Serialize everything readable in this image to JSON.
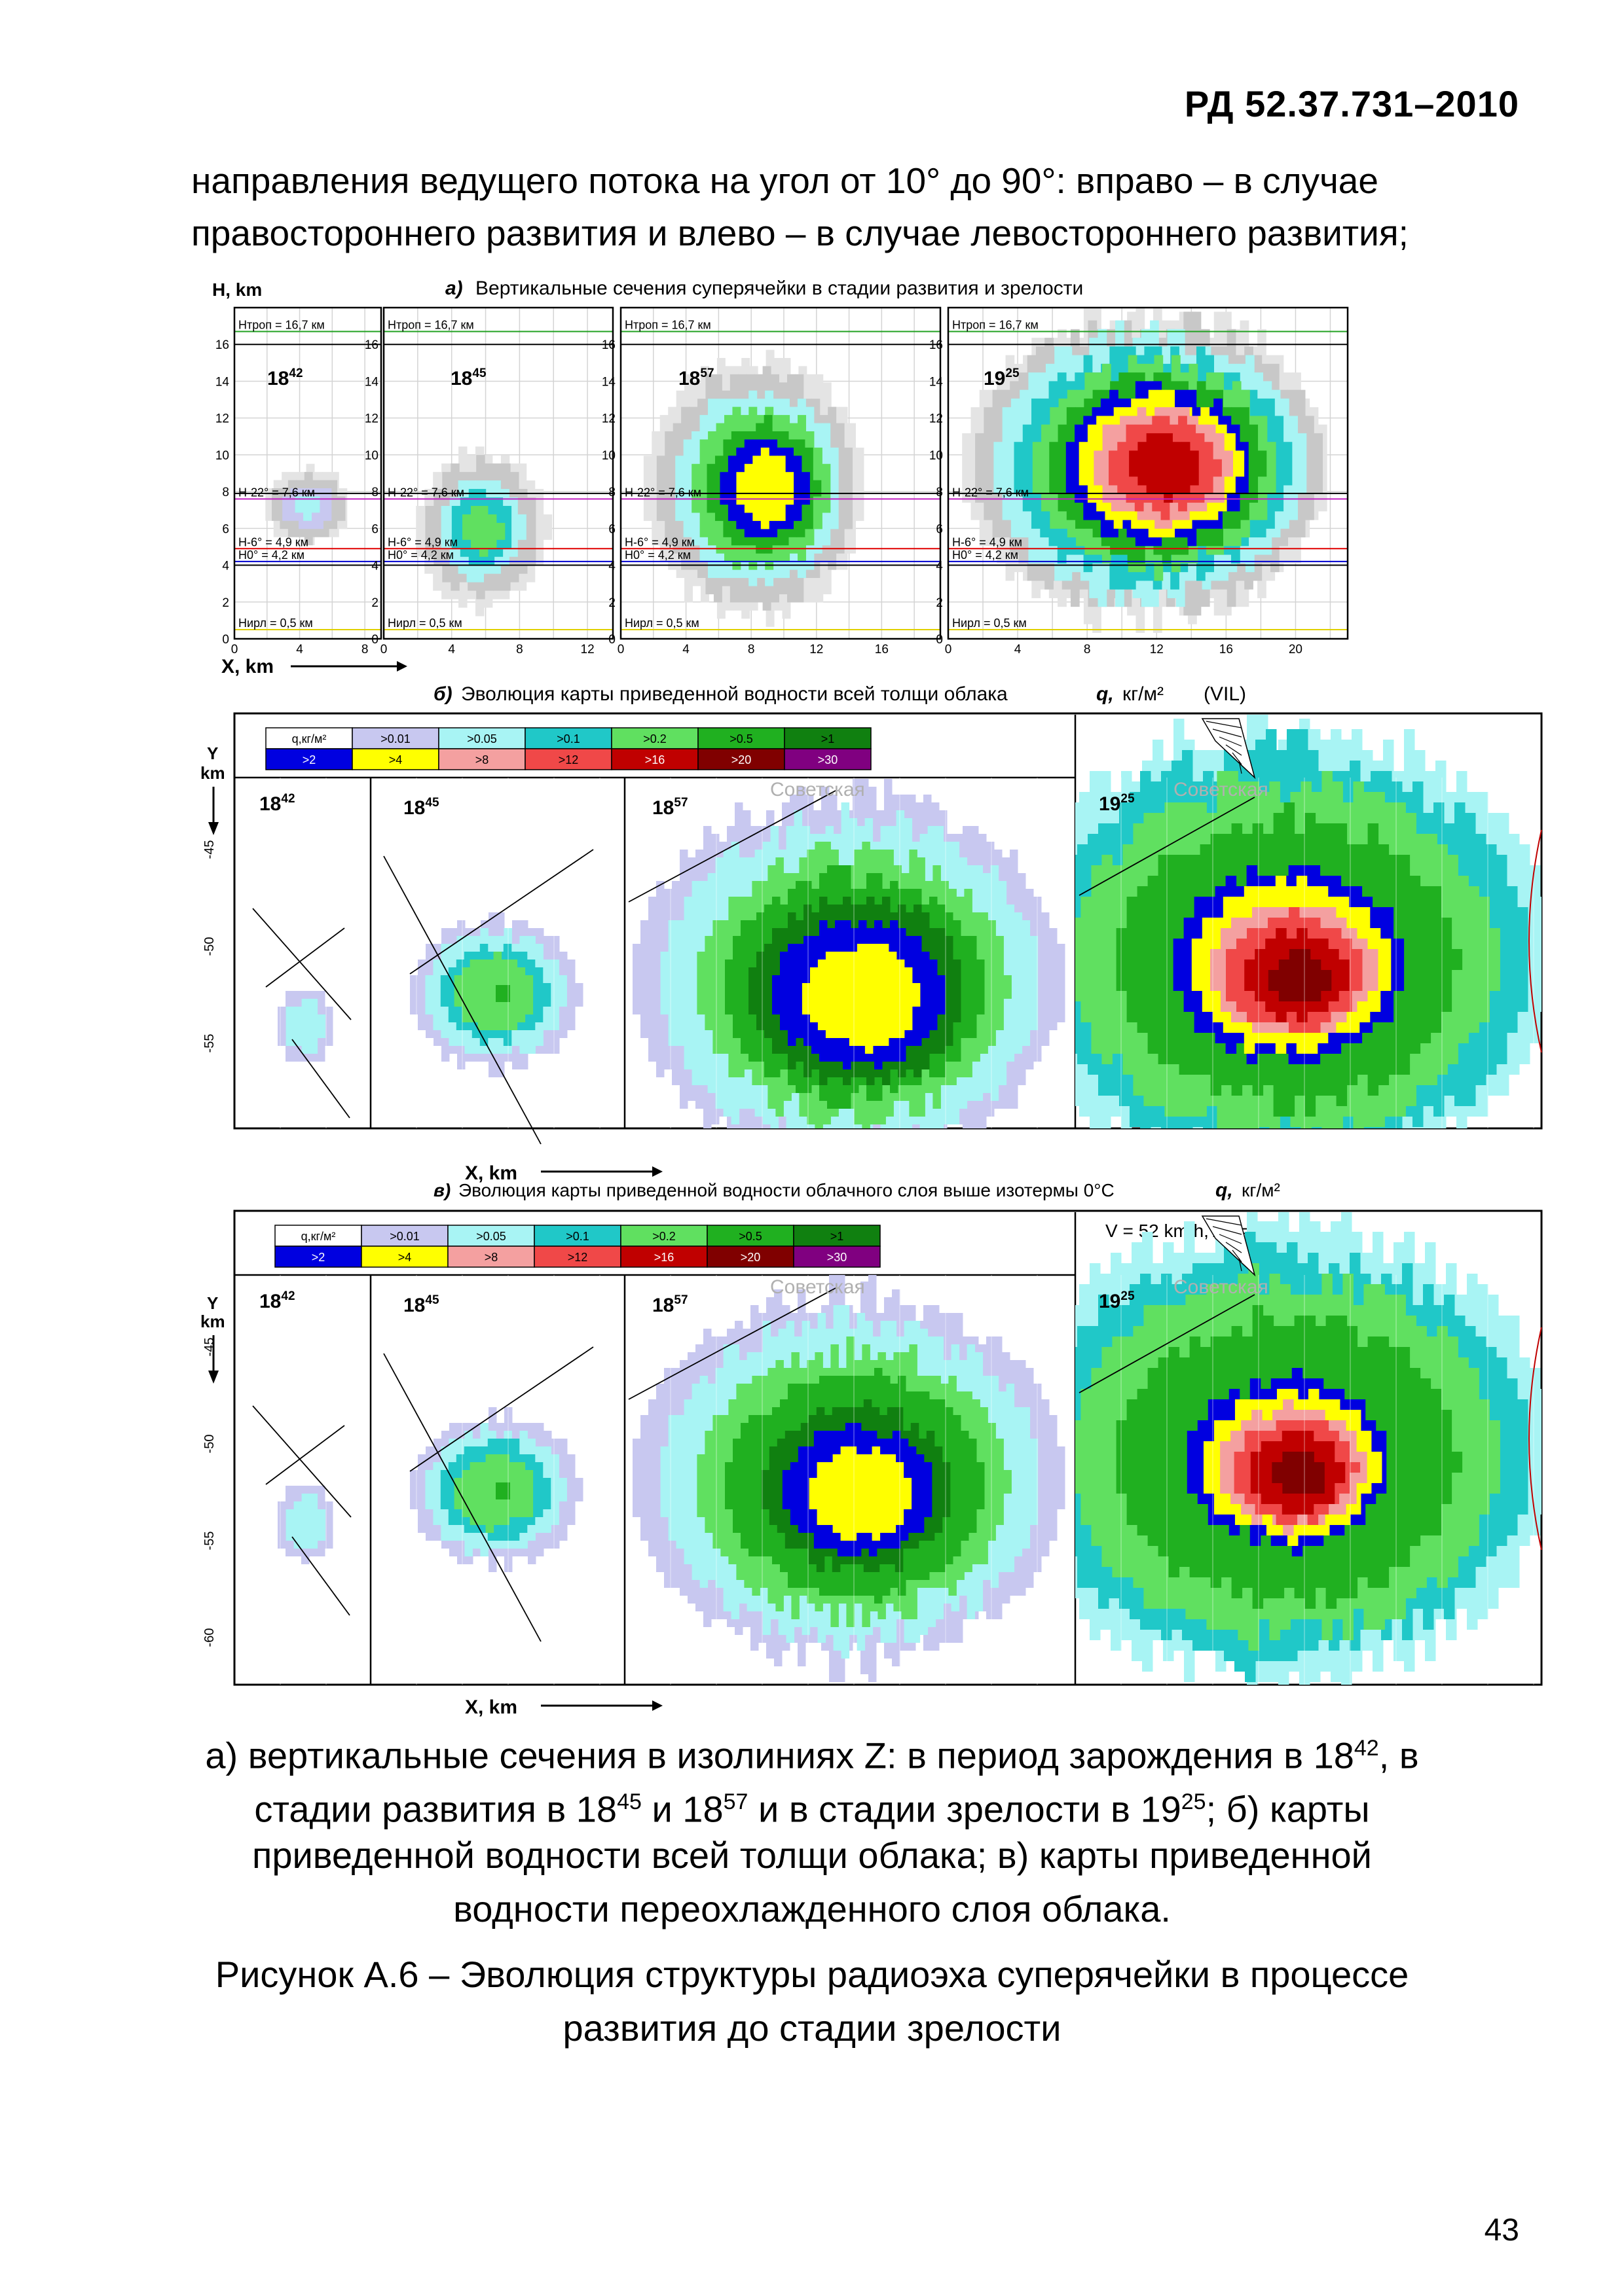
{
  "header": {
    "doc_code": "РД 52.37.731–2010"
  },
  "body": {
    "line1": "направления ведущего потока на угол от 10° до 90°: вправо – в случае",
    "line2": "правостороннего развития и влево – в случае левостороннего развития;"
  },
  "figure": {
    "panel_a": {
      "title_prefix": "а)",
      "title": "Вертикальные сечения суперячейки в стадии развития и зрелости",
      "y_axis_label": "H, km",
      "x_axis_label": "X, km",
      "levels": {
        "trop": "Нтроп = 16,7 км",
        "h22": "Н-22° = 7,6 км",
        "h6": "Н-6° = 4,9 км",
        "h0": "Н0° = 4,2 км",
        "hcond": "Нирл = 0,5 км"
      },
      "times": [
        "18",
        "18",
        "18",
        "19"
      ],
      "times_sup": [
        "42",
        "45",
        "57",
        "25"
      ],
      "y_ticks": [
        "0",
        "2",
        "4",
        "6",
        "8",
        "10",
        "12",
        "14",
        "16"
      ],
      "x_ticks_1": [
        "0",
        "4",
        "8"
      ],
      "x_ticks_2": [
        "0",
        "4",
        "8",
        "12"
      ],
      "x_ticks_3": [
        "0",
        "4",
        "8",
        "12",
        "16"
      ],
      "x_ticks_4": [
        "0",
        "4",
        "8",
        "12",
        "16",
        "20"
      ]
    },
    "panel_b": {
      "title_prefix": "б)",
      "title": "Эволюция карты приведенной водности всей толщи облака",
      "title_symbol": "q,",
      "title_unit": "кг/м²",
      "title_suffix": "(VIL)",
      "y_axis_label": "Y km",
      "x_axis_label": "X, km",
      "town": "Советская",
      "y_ticks": [
        "-45",
        "-50",
        "-55"
      ]
    },
    "panel_c": {
      "title_prefix": "в)",
      "title": "Эволюция карты приведенной водности облачного слоя выше изотермы 0°С",
      "title_symbol": "q,",
      "title_unit": "кг/м²",
      "y_axis_label": "Y km",
      "x_axis_label": "X, km",
      "town": "Советская",
      "velocity": "V = 52 km/h, Az = 63°",
      "y_ticks": [
        "-45",
        "-50",
        "-55",
        "-60"
      ]
    },
    "legend": {
      "row1": [
        {
          "label": "q,кг/м²",
          "color": "#ffffff"
        },
        {
          "label": ">0.01",
          "color": "#c8c8f0"
        },
        {
          "label": ">0.05",
          "color": "#a8f4f4"
        },
        {
          "label": ">0.1",
          "color": "#20c8c8"
        },
        {
          "label": ">0.2",
          "color": "#60e060"
        },
        {
          "label": ">0.5",
          "color": "#20b020"
        },
        {
          "label": ">1",
          "color": "#108010"
        }
      ],
      "row2": [
        {
          "label": ">2",
          "color": "#0000e0"
        },
        {
          "label": ">4",
          "color": "#ffff00"
        },
        {
          "label": ">8",
          "color": "#f4a0a0"
        },
        {
          "label": ">12",
          "color": "#f04848"
        },
        {
          "label": ">16",
          "color": "#c00000"
        },
        {
          "label": ">20",
          "color": "#800000"
        },
        {
          "label": ">30",
          "color": "#800080"
        }
      ]
    }
  },
  "caption": {
    "line1_a": "а) вертикальные сечения в изолиниях Z: в период зарождения в 18",
    "line1_sup": "42",
    "line1_b": ", в",
    "line2_a": "стадии развития в 18",
    "line2_sup1": "45",
    "line2_b": " и 18",
    "line2_sup2": "57",
    "line2_c": " и в стадии зрелости в 19",
    "line2_sup3": "25",
    "line2_d": "; б) карты",
    "line3": "приведенной водности всей толщи облака; в) карты приведенной",
    "line4": "водности переохлажденного слоя облака.",
    "figure_title_1": "Рисунок А.6 – Эволюция структуры радиоэха суперячейки в процессе",
    "figure_title_2": "развития до стадии зрелости"
  },
  "page_number": "43"
}
